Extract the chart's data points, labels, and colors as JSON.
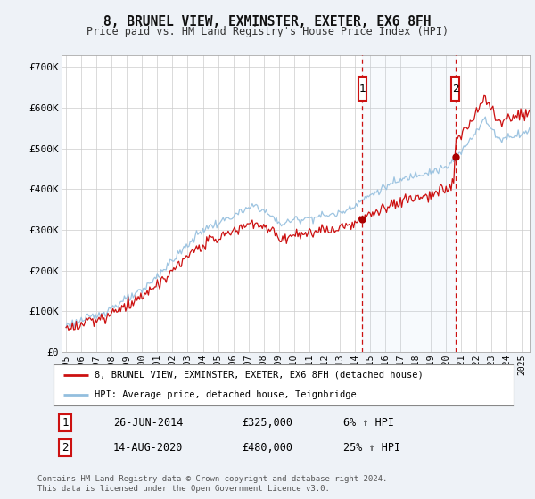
{
  "title": "8, BRUNEL VIEW, EXMINSTER, EXETER, EX6 8FH",
  "subtitle": "Price paid vs. HM Land Registry's House Price Index (HPI)",
  "bg_color": "#eef2f7",
  "plot_bg_color": "#ffffff",
  "grid_color": "#cccccc",
  "red_line_label": "8, BRUNEL VIEW, EXMINSTER, EXETER, EX6 8FH (detached house)",
  "blue_line_label": "HPI: Average price, detached house, Teignbridge",
  "transaction1_date": "26-JUN-2014",
  "transaction1_price": "£325,000",
  "transaction1_hpi": "6% ↑ HPI",
  "transaction2_date": "14-AUG-2020",
  "transaction2_price": "£480,000",
  "transaction2_hpi": "25% ↑ HPI",
  "footer": "Contains HM Land Registry data © Crown copyright and database right 2024.\nThis data is licensed under the Open Government Licence v3.0.",
  "ylim": [
    0,
    730000
  ],
  "yticks": [
    0,
    100000,
    200000,
    300000,
    400000,
    500000,
    600000,
    700000
  ],
  "ytick_labels": [
    "£0",
    "£100K",
    "£200K",
    "£300K",
    "£400K",
    "£500K",
    "£600K",
    "£700K"
  ],
  "transaction1_x": 2014.5,
  "transaction1_y": 325000,
  "transaction2_x": 2020.62,
  "transaction2_y": 480000,
  "xmin": 1995.0,
  "xmax": 2025.5
}
